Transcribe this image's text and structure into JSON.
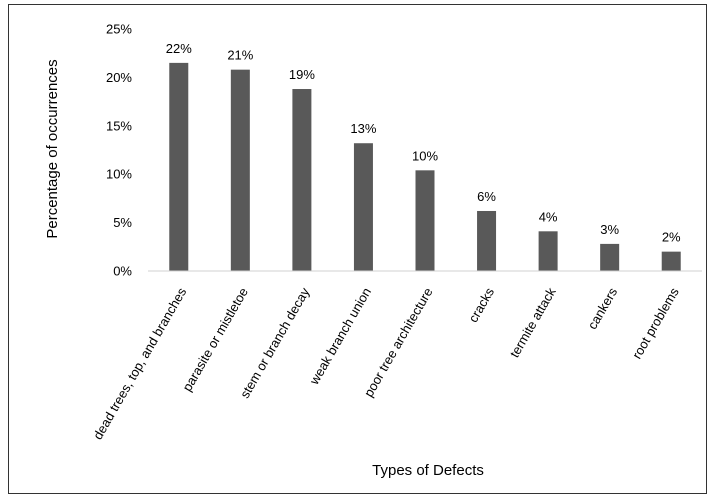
{
  "chart_data": {
    "type": "bar",
    "categories": [
      "dead trees, top, and branches",
      "parasite or mistletoe",
      "stem or branch decay",
      "weak branch union",
      "poor tree architecture",
      "cracks",
      "termite attack",
      "cankers",
      "root problems"
    ],
    "values": [
      21.5,
      20.8,
      18.8,
      13.2,
      10.4,
      6.2,
      4.1,
      2.8,
      2.0
    ],
    "data_labels": [
      "22%",
      "21%",
      "19%",
      "13%",
      "10%",
      "6%",
      "4%",
      "3%",
      "2%"
    ],
    "yticks": [
      "0%",
      "5%",
      "10%",
      "15%",
      "20%",
      "25%"
    ],
    "ylim": [
      0,
      25
    ],
    "title": "",
    "xlabel": "Types of Defects",
    "ylabel": "Percentage of occurrences",
    "bar_color": "#595959",
    "grid": false,
    "legend": "none"
  }
}
